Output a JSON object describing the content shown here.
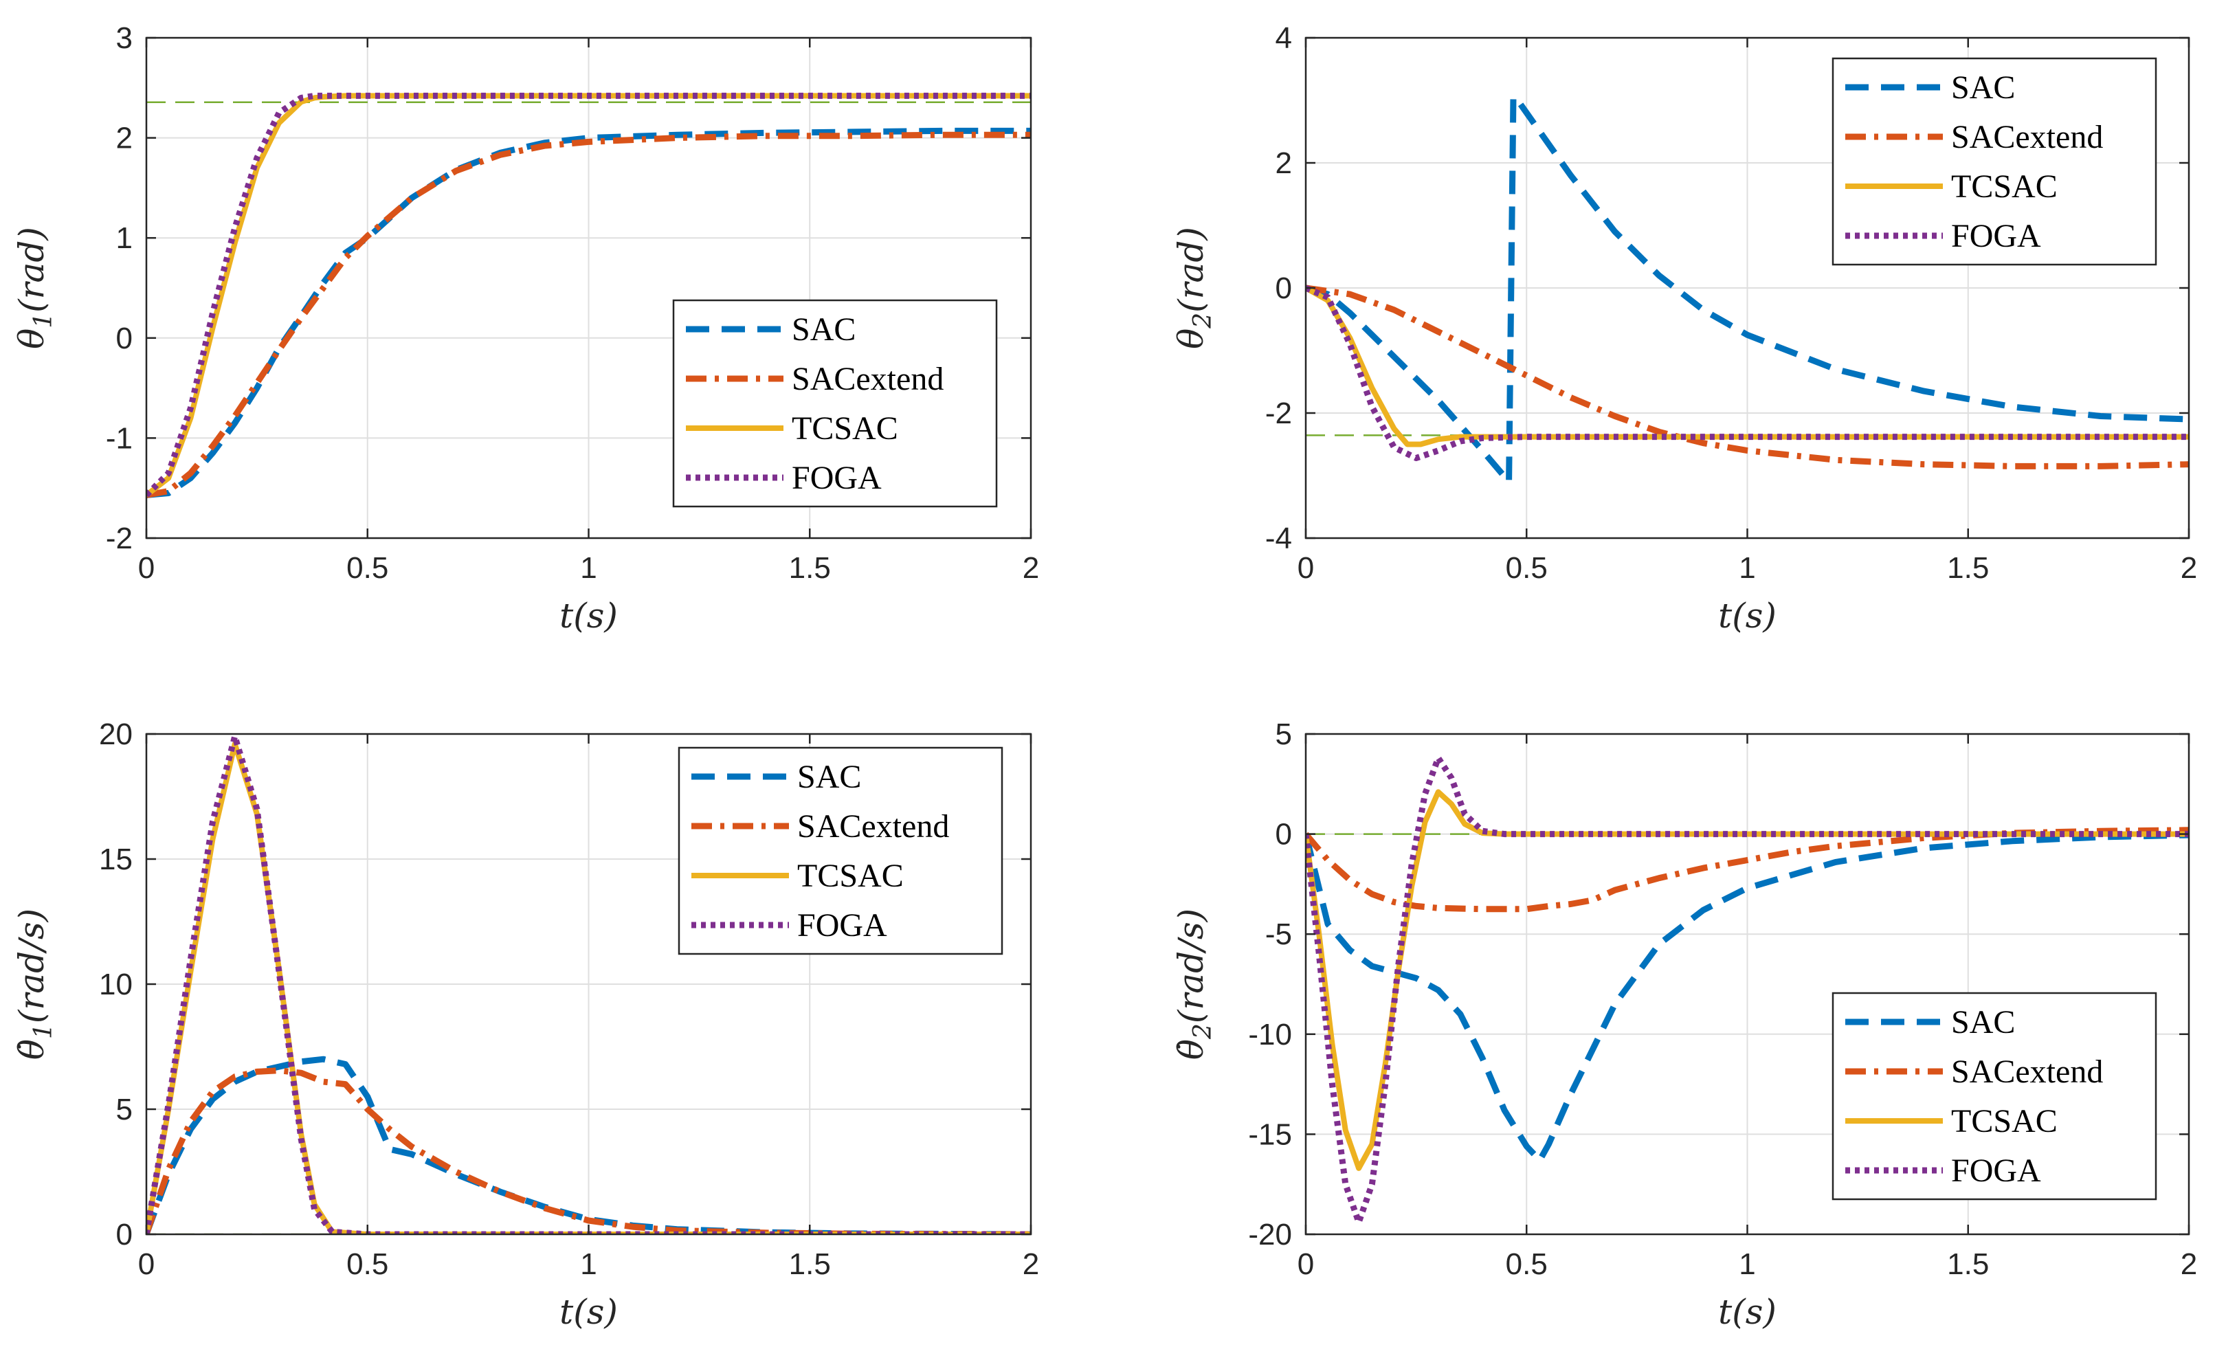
{
  "figure": {
    "layout": "2x2 subplots"
  },
  "chart_data": [
    {
      "id": "theta1",
      "type": "line",
      "xlabel": "t(s)",
      "ylabel": "θ1(rad)",
      "ylabel_parts": {
        "symbol": "θ",
        "sub": "1",
        "unit": "(rad)",
        "dot": false
      },
      "xlim": [
        0,
        2
      ],
      "ylim": [
        -2,
        3
      ],
      "xticks": [
        0,
        0.5,
        1,
        1.5,
        2
      ],
      "xtick_labels": [
        "0",
        "0.5",
        "1",
        "1.5",
        "2"
      ],
      "yticks": [
        -2,
        -1,
        0,
        1,
        2,
        3
      ],
      "ytick_labels": [
        "-2",
        "-1",
        "0",
        "1",
        "2",
        "3"
      ],
      "grid": true,
      "legend_position": "right-center",
      "reference": {
        "y": 2.356,
        "color": "#77AC30"
      },
      "series": [
        {
          "name": "SAC",
          "color": "#0072BD",
          "style": "dashed",
          "x": [
            0,
            0.05,
            0.1,
            0.15,
            0.2,
            0.25,
            0.3,
            0.35,
            0.4,
            0.45,
            0.5,
            0.6,
            0.7,
            0.8,
            0.9,
            1.0,
            1.2,
            1.4,
            1.6,
            1.8,
            2.0
          ],
          "y": [
            -1.57,
            -1.55,
            -1.4,
            -1.15,
            -0.85,
            -0.5,
            -0.1,
            0.22,
            0.55,
            0.85,
            1.0,
            1.4,
            1.68,
            1.85,
            1.95,
            2.0,
            2.03,
            2.05,
            2.06,
            2.07,
            2.07
          ]
        },
        {
          "name": "SACextend",
          "color": "#D95319",
          "style": "dashdot",
          "x": [
            0,
            0.05,
            0.1,
            0.15,
            0.2,
            0.25,
            0.3,
            0.35,
            0.4,
            0.45,
            0.5,
            0.6,
            0.7,
            0.8,
            0.9,
            1.0,
            1.2,
            1.4,
            1.6,
            1.8,
            2.0
          ],
          "y": [
            -1.57,
            -1.53,
            -1.35,
            -1.08,
            -0.78,
            -0.45,
            -0.12,
            0.2,
            0.5,
            0.8,
            1.02,
            1.4,
            1.67,
            1.83,
            1.92,
            1.96,
            2.0,
            2.02,
            2.02,
            2.03,
            2.03
          ]
        },
        {
          "name": "TCSAC",
          "color": "#EDB120",
          "style": "solid",
          "x": [
            0,
            0.05,
            0.1,
            0.15,
            0.2,
            0.25,
            0.3,
            0.35,
            0.38,
            0.4,
            0.45,
            0.5,
            1.0,
            1.5,
            2.0
          ],
          "y": [
            -1.57,
            -1.4,
            -0.8,
            0.1,
            0.95,
            1.7,
            2.15,
            2.36,
            2.4,
            2.41,
            2.42,
            2.42,
            2.42,
            2.42,
            2.42
          ]
        },
        {
          "name": "FOGA",
          "color": "#7E2F8E",
          "style": "dotted",
          "x": [
            0,
            0.05,
            0.1,
            0.15,
            0.2,
            0.25,
            0.3,
            0.35,
            0.38,
            0.4,
            0.45,
            0.5,
            1.0,
            1.5,
            2.0
          ],
          "y": [
            -1.57,
            -1.35,
            -0.7,
            0.25,
            1.1,
            1.8,
            2.25,
            2.4,
            2.42,
            2.42,
            2.42,
            2.42,
            2.42,
            2.42,
            2.42
          ]
        }
      ]
    },
    {
      "id": "theta2",
      "type": "line",
      "xlabel": "t(s)",
      "ylabel": "θ2(rad)",
      "ylabel_parts": {
        "symbol": "θ",
        "sub": "2",
        "unit": "(rad)",
        "dot": false
      },
      "xlim": [
        0,
        2
      ],
      "ylim": [
        -4,
        4
      ],
      "xticks": [
        0,
        0.5,
        1,
        1.5,
        2
      ],
      "xtick_labels": [
        "0",
        "0.5",
        "1",
        "1.5",
        "2"
      ],
      "yticks": [
        -4,
        -2,
        0,
        2,
        4
      ],
      "ytick_labels": [
        "-4",
        "-2",
        "0",
        "2",
        "4"
      ],
      "grid": true,
      "legend_position": "top-right",
      "reference": {
        "y": -2.356,
        "color": "#77AC30"
      },
      "series": [
        {
          "name": "SAC",
          "color": "#0072BD",
          "style": "dashed",
          "x": [
            0,
            0.05,
            0.1,
            0.2,
            0.3,
            0.4,
            0.46,
            0.47,
            0.48,
            0.5,
            0.6,
            0.7,
            0.8,
            0.9,
            1.0,
            1.2,
            1.4,
            1.6,
            1.8,
            2.0
          ],
          "y": [
            0,
            -0.1,
            -0.4,
            -1.1,
            -1.8,
            -2.6,
            -3.1,
            3.05,
            3.0,
            2.8,
            1.8,
            0.9,
            0.2,
            -0.35,
            -0.75,
            -1.3,
            -1.65,
            -1.9,
            -2.05,
            -2.1
          ]
        },
        {
          "name": "SACextend",
          "color": "#D95319",
          "style": "dashdot",
          "x": [
            0,
            0.1,
            0.2,
            0.3,
            0.4,
            0.5,
            0.6,
            0.7,
            0.8,
            0.9,
            1.0,
            1.2,
            1.4,
            1.6,
            1.8,
            2.0
          ],
          "y": [
            0,
            -0.1,
            -0.35,
            -0.7,
            -1.05,
            -1.4,
            -1.75,
            -2.05,
            -2.3,
            -2.48,
            -2.6,
            -2.75,
            -2.82,
            -2.85,
            -2.85,
            -2.82
          ]
        },
        {
          "name": "TCSAC",
          "color": "#EDB120",
          "style": "solid",
          "x": [
            0,
            0.05,
            0.1,
            0.15,
            0.2,
            0.23,
            0.26,
            0.3,
            0.35,
            0.4,
            0.5,
            1.0,
            1.5,
            2.0
          ],
          "y": [
            0,
            -0.2,
            -0.8,
            -1.6,
            -2.25,
            -2.5,
            -2.5,
            -2.42,
            -2.38,
            -2.38,
            -2.38,
            -2.38,
            -2.38,
            -2.38
          ]
        },
        {
          "name": "FOGA",
          "color": "#7E2F8E",
          "style": "dotted",
          "x": [
            0,
            0.05,
            0.1,
            0.15,
            0.2,
            0.25,
            0.3,
            0.35,
            0.4,
            0.5,
            1.0,
            1.5,
            2.0
          ],
          "y": [
            0,
            -0.15,
            -0.9,
            -1.9,
            -2.55,
            -2.72,
            -2.6,
            -2.45,
            -2.4,
            -2.38,
            -2.38,
            -2.38,
            -2.38
          ]
        }
      ]
    },
    {
      "id": "theta1dot",
      "type": "line",
      "xlabel": "t(s)",
      "ylabel": "θ̇1(rad/s)",
      "ylabel_parts": {
        "symbol": "θ",
        "sub": "1",
        "unit": "(rad/s)",
        "dot": true
      },
      "xlim": [
        0,
        2
      ],
      "ylim": [
        0,
        20
      ],
      "xticks": [
        0,
        0.5,
        1,
        1.5,
        2
      ],
      "xtick_labels": [
        "0",
        "0.5",
        "1",
        "1.5",
        "2"
      ],
      "yticks": [
        0,
        5,
        10,
        15,
        20
      ],
      "ytick_labels": [
        "0",
        "5",
        "10",
        "15",
        "20"
      ],
      "grid": true,
      "legend_position": "top-right",
      "reference": {
        "y": 0,
        "color": "#77AC30"
      },
      "series": [
        {
          "name": "SAC",
          "color": "#0072BD",
          "style": "dashed",
          "x": [
            0,
            0.05,
            0.1,
            0.15,
            0.2,
            0.25,
            0.3,
            0.35,
            0.4,
            0.45,
            0.5,
            0.55,
            0.6,
            0.7,
            0.8,
            0.9,
            1.0,
            1.1,
            1.2,
            1.4,
            1.6,
            2.0
          ],
          "y": [
            0,
            2.4,
            4.2,
            5.4,
            6.1,
            6.5,
            6.7,
            6.9,
            7.0,
            6.8,
            5.5,
            3.4,
            3.2,
            2.4,
            1.7,
            1.1,
            0.6,
            0.35,
            0.2,
            0.08,
            0.03,
            0
          ]
        },
        {
          "name": "SACextend",
          "color": "#D95319",
          "style": "dashdot",
          "x": [
            0,
            0.05,
            0.1,
            0.15,
            0.2,
            0.25,
            0.3,
            0.35,
            0.4,
            0.45,
            0.5,
            0.55,
            0.6,
            0.7,
            0.8,
            0.9,
            1.0,
            1.1,
            1.2,
            1.4,
            1.6,
            2.0
          ],
          "y": [
            0,
            2.6,
            4.5,
            5.7,
            6.3,
            6.5,
            6.55,
            6.45,
            6.1,
            6.0,
            5.0,
            4.2,
            3.5,
            2.5,
            1.7,
            1.05,
            0.55,
            0.3,
            0.15,
            0.06,
            0.02,
            0
          ]
        },
        {
          "name": "TCSAC",
          "color": "#EDB120",
          "style": "solid",
          "x": [
            0,
            0.05,
            0.1,
            0.15,
            0.2,
            0.25,
            0.3,
            0.35,
            0.38,
            0.42,
            0.5,
            1.0,
            1.5,
            2.0
          ],
          "y": [
            0,
            5.0,
            10.5,
            15.8,
            19.6,
            16.8,
            10.6,
            4.0,
            1.2,
            0.1,
            0,
            0,
            0,
            0
          ]
        },
        {
          "name": "FOGA",
          "color": "#7E2F8E",
          "style": "dotted",
          "x": [
            0,
            0.05,
            0.1,
            0.15,
            0.2,
            0.25,
            0.3,
            0.35,
            0.38,
            0.42,
            0.5,
            1.0,
            1.5,
            2.0
          ],
          "y": [
            0,
            5.2,
            11.0,
            16.5,
            19.9,
            17.0,
            10.5,
            3.8,
            1.0,
            0.1,
            0,
            0,
            0,
            0
          ]
        }
      ]
    },
    {
      "id": "theta2dot",
      "type": "line",
      "xlabel": "t(s)",
      "ylabel": "θ̇2(rad/s)",
      "ylabel_parts": {
        "symbol": "θ",
        "sub": "2",
        "unit": "(rad/s)",
        "dot": true
      },
      "xlim": [
        0,
        2
      ],
      "ylim": [
        -20,
        5
      ],
      "xticks": [
        0,
        0.5,
        1,
        1.5,
        2
      ],
      "xtick_labels": [
        "0",
        "0.5",
        "1",
        "1.5",
        "2"
      ],
      "yticks": [
        -20,
        -15,
        -10,
        -5,
        0,
        5
      ],
      "ytick_labels": [
        "-20",
        "-15",
        "-10",
        "-5",
        "0",
        "5"
      ],
      "grid": true,
      "legend_position": "bottom-right",
      "reference": {
        "y": 0,
        "color": "#77AC30"
      },
      "series": [
        {
          "name": "SAC",
          "color": "#0072BD",
          "style": "dashed",
          "x": [
            0,
            0.05,
            0.1,
            0.15,
            0.2,
            0.25,
            0.3,
            0.35,
            0.4,
            0.45,
            0.5,
            0.53,
            0.55,
            0.6,
            0.7,
            0.8,
            0.9,
            1.0,
            1.2,
            1.4,
            1.6,
            1.8,
            2.0
          ],
          "y": [
            0,
            -4.5,
            -5.8,
            -6.6,
            -6.9,
            -7.2,
            -7.8,
            -9.0,
            -11.2,
            -13.8,
            -15.6,
            -16.3,
            -15.5,
            -13.0,
            -8.5,
            -5.5,
            -3.8,
            -2.7,
            -1.4,
            -0.7,
            -0.35,
            -0.15,
            -0.05
          ]
        },
        {
          "name": "SACextend",
          "color": "#D95319",
          "style": "dashdot",
          "x": [
            0,
            0.05,
            0.1,
            0.15,
            0.2,
            0.25,
            0.3,
            0.4,
            0.5,
            0.55,
            0.6,
            0.65,
            0.7,
            0.8,
            0.9,
            1.0,
            1.1,
            1.2,
            1.4,
            1.6,
            1.8,
            2.0
          ],
          "y": [
            0,
            -1.3,
            -2.3,
            -3.0,
            -3.4,
            -3.6,
            -3.7,
            -3.75,
            -3.75,
            -3.6,
            -3.5,
            -3.3,
            -2.8,
            -2.2,
            -1.7,
            -1.3,
            -0.9,
            -0.6,
            -0.2,
            0.05,
            0.15,
            0.2
          ]
        },
        {
          "name": "TCSAC",
          "color": "#EDB120",
          "style": "solid",
          "x": [
            0,
            0.03,
            0.06,
            0.09,
            0.12,
            0.15,
            0.18,
            0.21,
            0.24,
            0.27,
            0.3,
            0.33,
            0.36,
            0.4,
            0.45,
            0.5,
            1.0,
            1.5,
            2.0
          ],
          "y": [
            0,
            -5.0,
            -10.5,
            -14.8,
            -16.7,
            -15.5,
            -11.5,
            -6.8,
            -2.6,
            0.6,
            2.1,
            1.5,
            0.5,
            0.05,
            0,
            0,
            0,
            0,
            0
          ]
        },
        {
          "name": "FOGA",
          "color": "#7E2F8E",
          "style": "dotted",
          "x": [
            0,
            0.03,
            0.06,
            0.09,
            0.12,
            0.15,
            0.18,
            0.21,
            0.24,
            0.27,
            0.3,
            0.33,
            0.36,
            0.4,
            0.45,
            0.5,
            1.0,
            1.5,
            2.0
          ],
          "y": [
            0,
            -6.0,
            -12.5,
            -17.5,
            -19.4,
            -17.5,
            -12.5,
            -6.5,
            -1.5,
            2.0,
            3.8,
            2.8,
            1.0,
            0.15,
            0,
            0,
            0,
            0,
            0
          ]
        }
      ]
    }
  ]
}
